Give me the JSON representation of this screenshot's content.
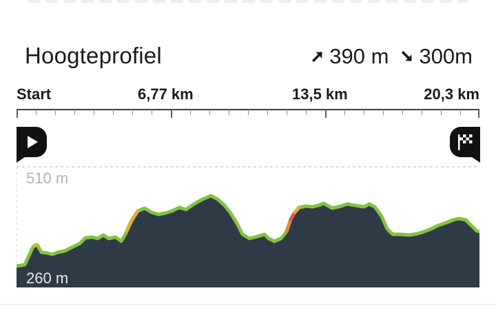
{
  "elevation_profile": {
    "title": "Hoogteprofiel",
    "ascent": {
      "value": "390 m",
      "icon": "arrow-up-right-icon"
    },
    "descent": {
      "value": "300m",
      "icon": "arrow-down-right-icon"
    },
    "distance_axis": {
      "labels": [
        "Start",
        "6,77 km",
        "13,5 km",
        "20,3 km"
      ]
    },
    "start_icon": "play-icon",
    "finish_icon": "finish-flag-icon",
    "elevation_axis": {
      "top_label": "510 m",
      "bottom_label": "260 m"
    },
    "colors": {
      "profile_fill": "#2f3a47",
      "profile_line": "#82c342",
      "steep_yellow": "#d7b13a",
      "steep_orange": "#d98b3a",
      "steep_red": "#d65a4c"
    }
  }
}
